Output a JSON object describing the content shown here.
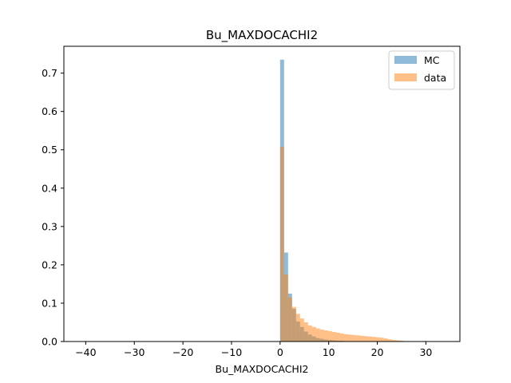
{
  "chart_data": {
    "type": "histogram",
    "title": "Bu_MAXDOCACHI2",
    "xlabel": "Bu_MAXDOCACHI2",
    "ylabel": "",
    "xlim": [
      -44.5,
      37.0
    ],
    "ylim": [
      0,
      0.77
    ],
    "xticks": [
      -40,
      -30,
      -20,
      -10,
      0,
      10,
      20,
      30
    ],
    "xtick_labels": [
      "−40",
      "−30",
      "−20",
      "−10",
      "0",
      "10",
      "20",
      "30"
    ],
    "yticks": [
      0.0,
      0.1,
      0.2,
      0.3,
      0.4,
      0.5,
      0.6,
      0.7
    ],
    "ytick_labels": [
      "0.0",
      "0.1",
      "0.2",
      "0.3",
      "0.4",
      "0.5",
      "0.6",
      "0.7"
    ],
    "legend_position": "top-right",
    "bin_width": 0.82,
    "bin_start": 0.0,
    "series": [
      {
        "name": "MC",
        "color": "#1f77b4",
        "alpha": 0.5,
        "values": [
          0.735,
          0.232,
          0.125,
          0.085,
          0.052,
          0.038,
          0.026,
          0.018,
          0.013,
          0.009,
          0.007,
          0.005,
          0.004,
          0.003,
          0.002,
          0.002,
          0.001,
          0.001,
          0.001,
          0.0
        ]
      },
      {
        "name": "data",
        "color": "#ff7f0e",
        "alpha": 0.5,
        "values": [
          0.508,
          0.175,
          0.115,
          0.09,
          0.072,
          0.06,
          0.05,
          0.042,
          0.038,
          0.034,
          0.031,
          0.029,
          0.027,
          0.025,
          0.023,
          0.021,
          0.019,
          0.018,
          0.017,
          0.016,
          0.015,
          0.014,
          0.013,
          0.012,
          0.011,
          0.01,
          0.008,
          0.006,
          0.004,
          0.003,
          0.002,
          0.001
        ]
      }
    ]
  }
}
